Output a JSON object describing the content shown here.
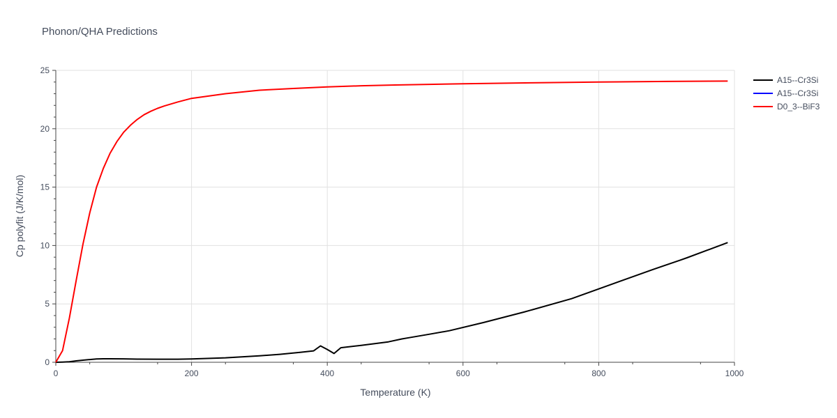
{
  "chart_data": {
    "type": "line",
    "title": "Phonon/QHA Predictions",
    "xlabel": "Temperature (K)",
    "ylabel": "Cp polyfit (J/K/mol)",
    "xlim": [
      0,
      1000
    ],
    "ylim": [
      0,
      25
    ],
    "xticks": [
      0,
      200,
      400,
      600,
      800,
      1000
    ],
    "yticks": [
      0,
      5,
      10,
      15,
      20,
      25
    ],
    "grid": true,
    "legend_position": "top-right",
    "series": [
      {
        "name": "A15--Cr3Si",
        "color": "#000000",
        "x": [
          0,
          10,
          20,
          30,
          40,
          50,
          60,
          70,
          80,
          100,
          120,
          150,
          180,
          200,
          250,
          300,
          330,
          360,
          380,
          390,
          400,
          410,
          420,
          450,
          490,
          510,
          520,
          550,
          580,
          630,
          690,
          760,
          820,
          880,
          920,
          930,
          960,
          990
        ],
        "y": [
          0,
          0.02,
          0.05,
          0.12,
          0.18,
          0.23,
          0.28,
          0.3,
          0.3,
          0.29,
          0.27,
          0.26,
          0.26,
          0.28,
          0.38,
          0.55,
          0.68,
          0.85,
          0.98,
          1.4,
          1.1,
          0.75,
          1.25,
          1.45,
          1.75,
          2.0,
          2.1,
          2.4,
          2.7,
          3.4,
          4.3,
          5.45,
          6.7,
          7.95,
          8.75,
          8.95,
          9.6,
          10.25
        ]
      },
      {
        "name": "A15--Cr3Si",
        "color": "#0000ff",
        "x": [],
        "y": []
      },
      {
        "name": "D0_3--BiF3",
        "color": "#ff0000",
        "x": [
          0,
          10,
          20,
          30,
          40,
          50,
          60,
          70,
          80,
          90,
          100,
          110,
          120,
          130,
          140,
          150,
          160,
          180,
          200,
          250,
          300,
          350,
          400,
          450,
          500,
          600,
          700,
          800,
          900,
          990
        ],
        "y": [
          0,
          1.0,
          3.8,
          7.0,
          10.1,
          12.8,
          15.0,
          16.6,
          17.9,
          18.9,
          19.7,
          20.3,
          20.8,
          21.2,
          21.5,
          21.75,
          21.95,
          22.3,
          22.6,
          23.0,
          23.3,
          23.45,
          23.58,
          23.68,
          23.75,
          23.85,
          23.93,
          24.0,
          24.05,
          24.08
        ]
      }
    ]
  }
}
